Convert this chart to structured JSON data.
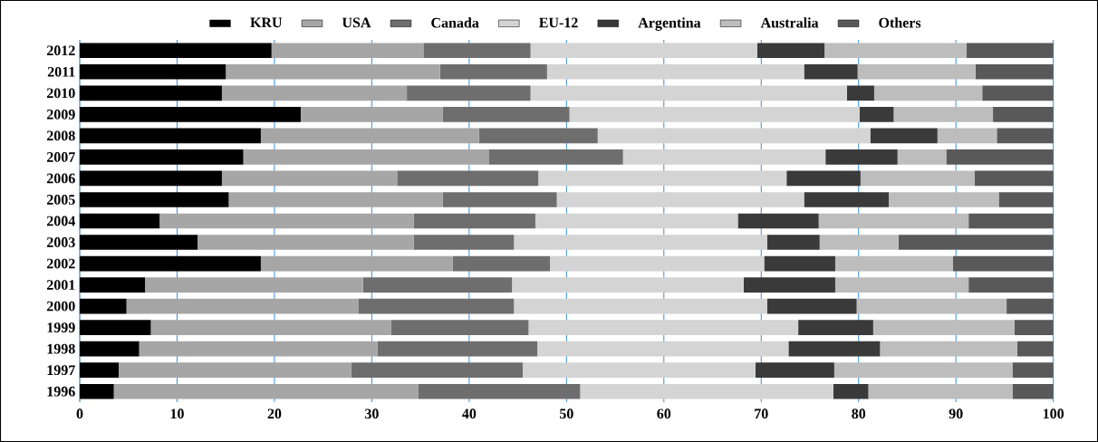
{
  "chart_data": {
    "type": "bar",
    "orientation": "horizontal",
    "stacked": true,
    "categories": [
      "2012",
      "2011",
      "2010",
      "2009",
      "2008",
      "2007",
      "2006",
      "2005",
      "2004",
      "2003",
      "2002",
      "2001",
      "2000",
      "1999",
      "1998",
      "1997",
      "1996"
    ],
    "xlim": [
      0,
      100
    ],
    "xticks": [
      0,
      10,
      20,
      30,
      40,
      50,
      60,
      70,
      80,
      90,
      100
    ],
    "grid": "x",
    "legend": "top",
    "series": [
      {
        "name": "KRU",
        "color": "#000000",
        "values": [
          19.7,
          15.0,
          14.6,
          22.7,
          18.6,
          16.8,
          14.6,
          15.3,
          8.2,
          12.1,
          18.6,
          6.7,
          4.8,
          7.3,
          6.1,
          4.0,
          3.5
        ]
      },
      {
        "name": "USA",
        "color": "#a6a6a6",
        "values": [
          15.6,
          22.0,
          19.0,
          14.6,
          22.4,
          25.2,
          18.0,
          22.0,
          26.1,
          22.2,
          19.7,
          22.4,
          23.8,
          24.7,
          24.5,
          23.9,
          31.3
        ]
      },
      {
        "name": "Canada",
        "color": "#6e6e6e",
        "values": [
          11.0,
          11.0,
          12.7,
          13.0,
          12.2,
          13.8,
          14.5,
          11.7,
          12.5,
          10.3,
          10.0,
          15.3,
          16.0,
          14.1,
          16.4,
          17.6,
          16.6
        ]
      },
      {
        "name": "EU-12",
        "color": "#d4d4d4",
        "values": [
          23.3,
          26.4,
          32.5,
          29.8,
          28.0,
          20.8,
          25.5,
          25.4,
          20.8,
          26.0,
          22.0,
          23.8,
          26.0,
          27.7,
          25.8,
          23.9,
          26.0
        ]
      },
      {
        "name": "Argentina",
        "color": "#3a3a3a",
        "values": [
          6.9,
          5.5,
          2.8,
          3.5,
          6.9,
          7.4,
          7.6,
          8.7,
          8.3,
          5.4,
          7.3,
          9.4,
          9.2,
          7.7,
          9.4,
          8.1,
          3.6
        ]
      },
      {
        "name": "Australia",
        "color": "#bdbdbd",
        "values": [
          14.6,
          12.1,
          11.1,
          10.2,
          6.1,
          5.0,
          11.7,
          11.3,
          15.4,
          8.1,
          12.1,
          13.7,
          15.4,
          14.5,
          14.1,
          18.3,
          14.8
        ]
      },
      {
        "name": "Others",
        "color": "#595959",
        "values": [
          8.9,
          8.0,
          7.3,
          6.2,
          5.8,
          11.0,
          8.1,
          5.6,
          8.7,
          15.9,
          10.3,
          8.7,
          4.8,
          4.0,
          3.7,
          4.2,
          4.2
        ]
      }
    ]
  }
}
